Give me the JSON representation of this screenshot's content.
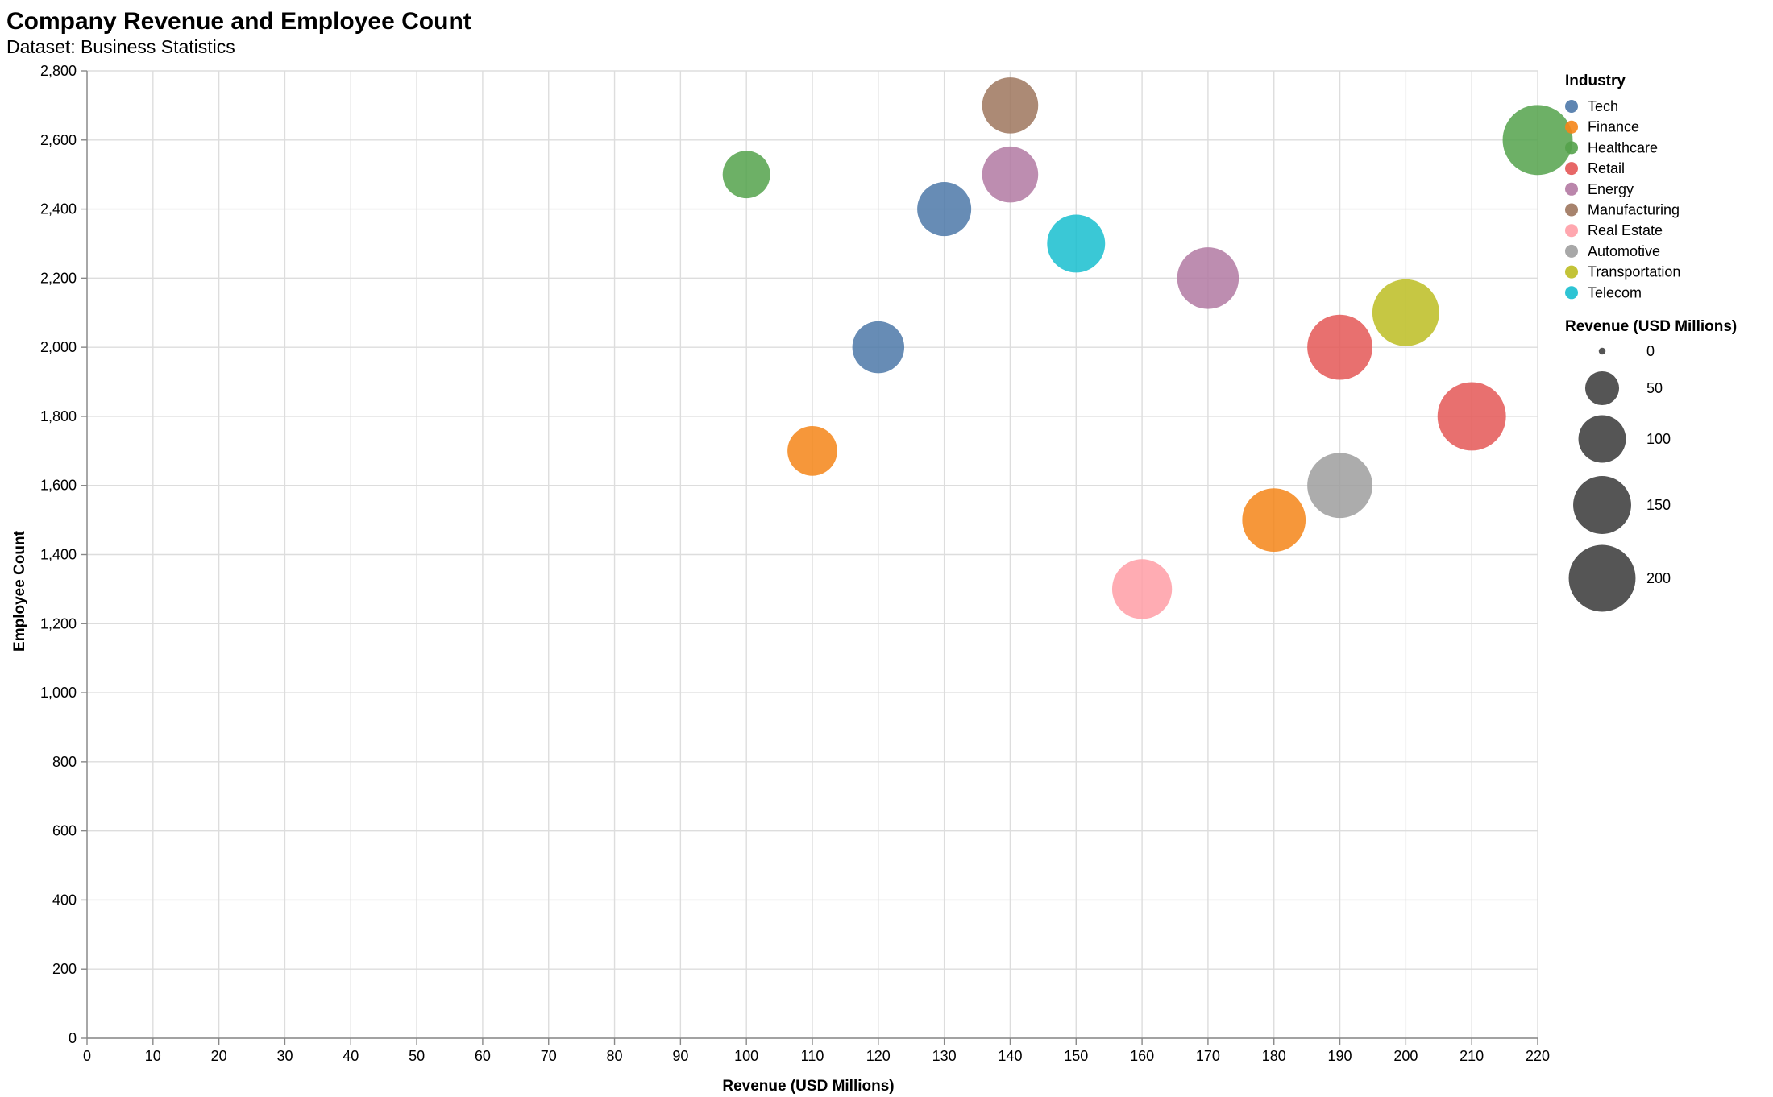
{
  "chart_data": {
    "type": "scatter",
    "title": "Company Revenue and Employee Count",
    "subtitle": "Dataset: Business Statistics",
    "xlabel": "Revenue (USD Millions)",
    "ylabel": "Employee Count",
    "xlim": [
      0,
      220
    ],
    "ylim": [
      0,
      2800
    ],
    "x_ticks": [
      0,
      10,
      20,
      30,
      40,
      50,
      60,
      70,
      80,
      90,
      100,
      110,
      120,
      130,
      140,
      150,
      160,
      170,
      180,
      190,
      200,
      210,
      220
    ],
    "y_ticks": [
      0,
      200,
      400,
      600,
      800,
      1000,
      1200,
      1400,
      1600,
      1800,
      2000,
      2200,
      2400,
      2600,
      2800
    ],
    "x_tick_labels": [
      "0",
      "10",
      "20",
      "30",
      "40",
      "50",
      "60",
      "70",
      "80",
      "90",
      "100",
      "110",
      "120",
      "130",
      "140",
      "150",
      "160",
      "170",
      "180",
      "190",
      "200",
      "210",
      "220"
    ],
    "y_tick_labels": [
      "0",
      "200",
      "400",
      "600",
      "800",
      "1,000",
      "1,200",
      "1,400",
      "1,600",
      "1,800",
      "2,000",
      "2,200",
      "2,400",
      "2,600",
      "2,800"
    ],
    "grid": true,
    "legend_placement": "right",
    "color_legend_title": "Industry",
    "size_legend_title": "Revenue (USD Millions)",
    "size_legend_values": [
      0,
      50,
      100,
      150,
      200
    ],
    "size_legend_labels": [
      "0",
      "50",
      "100",
      "150",
      "200"
    ],
    "industries": [
      {
        "name": "Tech",
        "color": "#4c78a8"
      },
      {
        "name": "Finance",
        "color": "#f58518"
      },
      {
        "name": "Healthcare",
        "color": "#54a24b"
      },
      {
        "name": "Retail",
        "color": "#e45756"
      },
      {
        "name": "Energy",
        "color": "#b279a2"
      },
      {
        "name": "Manufacturing",
        "color": "#9d755d"
      },
      {
        "name": "Real Estate",
        "color": "#ff9da6"
      },
      {
        "name": "Automotive",
        "color": "#9e9e9e"
      },
      {
        "name": "Transportation",
        "color": "#bcbd22"
      },
      {
        "name": "Telecom",
        "color": "#17becf"
      }
    ],
    "points": [
      {
        "industry": "Healthcare",
        "x": 100,
        "y": 2500
      },
      {
        "industry": "Finance",
        "x": 110,
        "y": 1700
      },
      {
        "industry": "Tech",
        "x": 120,
        "y": 2000
      },
      {
        "industry": "Tech",
        "x": 130,
        "y": 2400
      },
      {
        "industry": "Manufacturing",
        "x": 140,
        "y": 2700
      },
      {
        "industry": "Energy",
        "x": 140,
        "y": 2500
      },
      {
        "industry": "Telecom",
        "x": 150,
        "y": 2300
      },
      {
        "industry": "Real Estate",
        "x": 160,
        "y": 1300
      },
      {
        "industry": "Energy",
        "x": 170,
        "y": 2200
      },
      {
        "industry": "Finance",
        "x": 180,
        "y": 1500
      },
      {
        "industry": "Retail",
        "x": 190,
        "y": 2000
      },
      {
        "industry": "Automotive",
        "x": 190,
        "y": 1600
      },
      {
        "industry": "Transportation",
        "x": 200,
        "y": 2100
      },
      {
        "industry": "Retail",
        "x": 210,
        "y": 1800
      },
      {
        "industry": "Healthcare",
        "x": 220,
        "y": 2600
      }
    ]
  }
}
